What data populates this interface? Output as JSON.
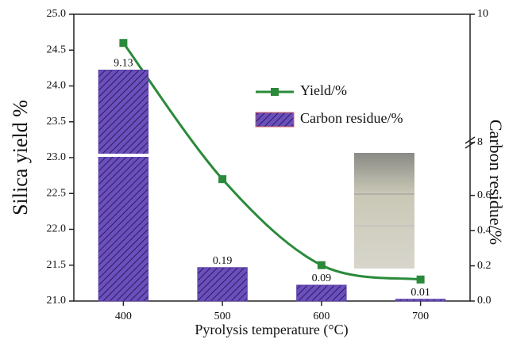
{
  "chart_data": {
    "type": "bar",
    "xlabel": "Pyrolysis temperature (°C)",
    "ylabel": "Silica yield %",
    "y2label": "Carbon residue/%",
    "categories": [
      "400",
      "500",
      "600",
      "700"
    ],
    "series": [
      {
        "name": "Yield/%",
        "type": "line",
        "color": "#2a8a3a",
        "values": [
          24.6,
          22.7,
          21.5,
          21.3
        ]
      },
      {
        "name": "Carbon residue/%",
        "type": "bar",
        "axis": "y2",
        "color": "#5b3fa8",
        "values": [
          9.13,
          0.19,
          0.09,
          0.01
        ]
      }
    ],
    "ylim": [
      21,
      25
    ],
    "yticks": [
      {
        "value": 21,
        "label": "21.0"
      },
      21.5,
      {
        "value": 22,
        "label": "22.0"
      },
      22.5,
      {
        "value": 23,
        "label": "23.0"
      },
      23.5,
      {
        "value": 24,
        "label": "24.0"
      },
      24.5,
      {
        "value": 25,
        "label": "25.0"
      }
    ],
    "y2lim": [
      0,
      10
    ],
    "y2break": [
      0.9,
      8
    ],
    "y2ticks": [
      {
        "value": 0,
        "label": "0.0"
      },
      0.2,
      0.4,
      0.6,
      8,
      10
    ],
    "legend": "upper right"
  }
}
